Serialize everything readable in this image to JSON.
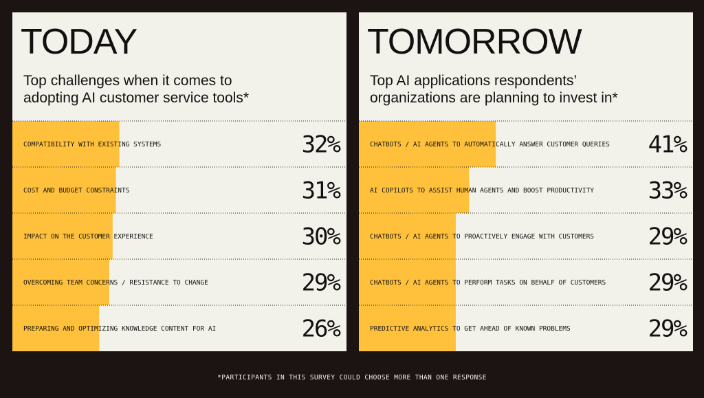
{
  "chart_data": [
    {
      "type": "bar",
      "orientation": "horizontal",
      "title": "TODAY",
      "subtitle": [
        "Top challenges when it comes to",
        "adopting AI customer service tools*"
      ],
      "categories": [
        "COMPATIBILITY WITH EXISTING SYSTEMS",
        "COST AND BUDGET CONSTRAINTS",
        "IMPACT ON THE CUSTOMER EXPERIENCE",
        "OVERCOMING TEAM CONCERNS / RESISTANCE TO CHANGE",
        "PREPARING AND OPTIMIZING KNOWLEDGE CONTENT FOR AI"
      ],
      "values": [
        32,
        31,
        30,
        29,
        26
      ],
      "value_labels": [
        "32%",
        "31%",
        "30%",
        "29%",
        "26%"
      ],
      "color": "#ffc13b",
      "xlim": [
        0,
        100
      ]
    },
    {
      "type": "bar",
      "orientation": "horizontal",
      "title": "TOMORROW",
      "subtitle": [
        "Top AI applications respondents’",
        "organizations are planning to invest in*"
      ],
      "categories": [
        "CHATBOTS / AI AGENTS TO AUTOMATICALLY ANSWER CUSTOMER QUERIES",
        "AI COPILOTS TO ASSIST HUMAN AGENTS AND BOOST PRODUCTIVITY",
        "CHATBOTS / AI AGENTS TO PROACTIVELY ENGAGE WITH CUSTOMERS",
        "CHATBOTS / AI AGENTS TO PERFORM TASKS ON BEHALF OF CUSTOMERS",
        "PREDICTIVE ANALYTICS TO GET AHEAD OF KNOWN PROBLEMS"
      ],
      "values": [
        41,
        33,
        29,
        29,
        29
      ],
      "value_labels": [
        "41%",
        "33%",
        "29%",
        "29%",
        "29%"
      ],
      "color": "#ffc13b",
      "xlim": [
        0,
        100
      ]
    }
  ],
  "footnote": "*PARTICIPANTS IN THIS SURVEY COULD CHOOSE MORE THAN ONE RESPONSE"
}
